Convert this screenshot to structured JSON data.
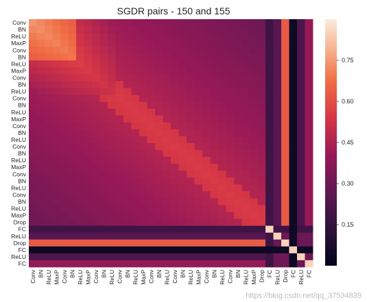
{
  "chart_data": {
    "type": "heatmap",
    "title": "SGDR pairs - 150 and 155",
    "labels": [
      "Conv",
      "BN",
      "ReLU",
      "MaxP",
      "Conv",
      "BN",
      "ReLU",
      "MaxP",
      "Conv",
      "BN",
      "ReLU",
      "Conv",
      "BN",
      "ReLU",
      "MaxP",
      "Conv",
      "BN",
      "ReLU",
      "Conv",
      "BN",
      "ReLU",
      "MaxP",
      "Conv",
      "BN",
      "ReLU",
      "Conv",
      "BN",
      "ReLU",
      "MaxP",
      "Drop",
      "FC",
      "ReLU",
      "Drop",
      "FC",
      "ReLU",
      "FC"
    ],
    "colorbar": {
      "ticks": [
        0.15,
        0.3,
        0.45,
        0.6,
        0.75
      ],
      "vmin": 0.0,
      "vmax": 0.9
    },
    "colormap": "rocket",
    "note": "symmetric similarity matrix; diagonal blocks brighter",
    "watermark": "https://blog.csdn.net/qq_37534839"
  }
}
